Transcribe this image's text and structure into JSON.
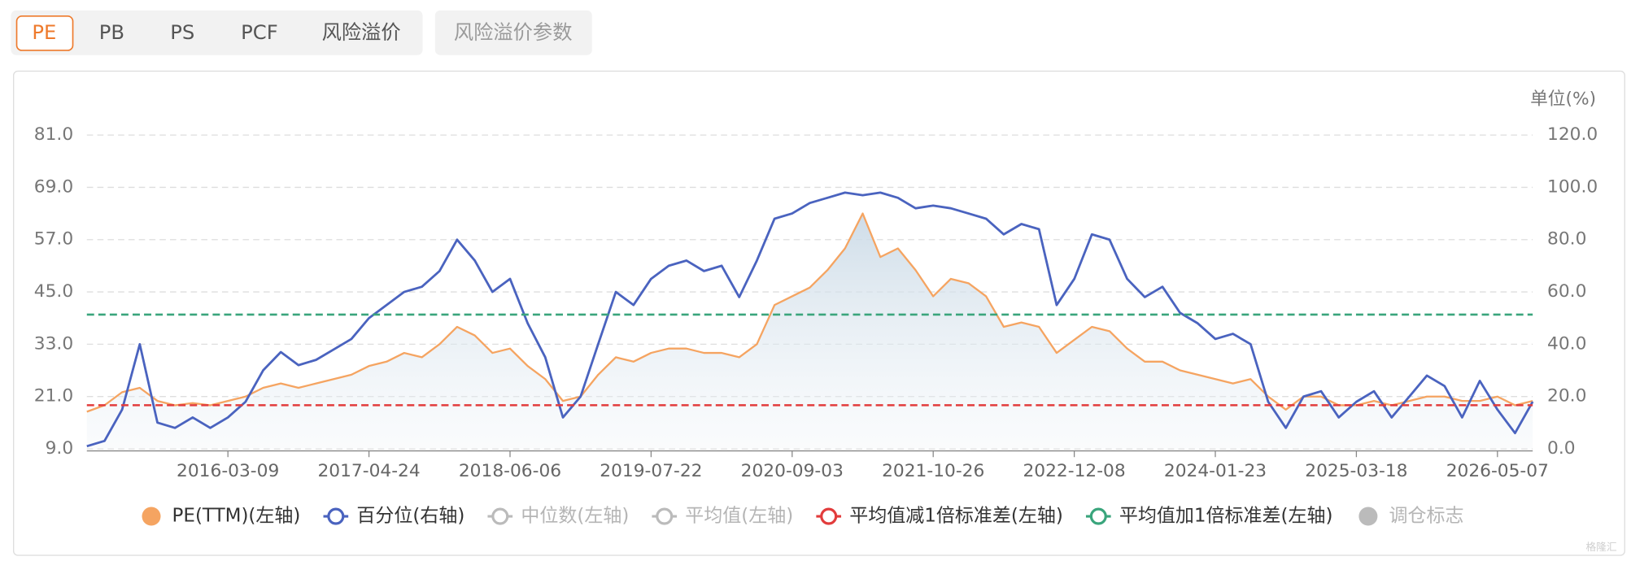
{
  "tabs": {
    "items": [
      "PE",
      "PB",
      "PS",
      "PCF",
      "风险溢价"
    ],
    "active": 0,
    "extra": "风险溢价参数"
  },
  "chart_data": {
    "type": "line",
    "y2_unit_label": "单位(%)",
    "categories": [
      null,
      null,
      null,
      null,
      null,
      null,
      null,
      null,
      "2016-03-09",
      null,
      null,
      null,
      null,
      null,
      null,
      null,
      "2017-04-24",
      null,
      null,
      null,
      null,
      null,
      null,
      null,
      "2018-06-06",
      null,
      null,
      null,
      null,
      null,
      null,
      null,
      "2019-07-22",
      null,
      null,
      null,
      null,
      null,
      null,
      null,
      "2020-09-03",
      null,
      null,
      null,
      null,
      null,
      null,
      null,
      "2021-10-26",
      null,
      null,
      null,
      null,
      null,
      null,
      null,
      "2022-12-08",
      null,
      null,
      null,
      null,
      null,
      null,
      null,
      "2024-01-23",
      null,
      null,
      null,
      null,
      null,
      null,
      null,
      "2025-03-18",
      null,
      null,
      null,
      null,
      null,
      null,
      null,
      "2026-05-07",
      null,
      null
    ],
    "ylim": [
      9,
      81
    ],
    "yticks": [
      {
        "value": 9,
        "label": "9.0"
      },
      {
        "value": 21,
        "label": "21.0"
      },
      {
        "value": 33,
        "label": "33.0"
      },
      {
        "value": 45,
        "label": "45.0"
      },
      {
        "value": 57,
        "label": "57.0"
      },
      {
        "value": 69,
        "label": "69.0"
      },
      {
        "value": 81,
        "label": "81.0"
      }
    ],
    "y2lim": [
      0,
      120
    ],
    "y2ticks": [
      {
        "value": 0,
        "label": "0.0"
      },
      {
        "value": 20,
        "label": "20.0"
      },
      {
        "value": 40,
        "label": "40.0"
      },
      {
        "value": 60,
        "label": "60.0"
      },
      {
        "value": 80,
        "label": "80.0"
      },
      {
        "value": 100,
        "label": "100.0"
      },
      {
        "value": 120,
        "label": "120.0"
      }
    ],
    "grid": true,
    "series": [
      {
        "name": "PE(TTM)(左轴)",
        "color": "#f5a461",
        "area": true,
        "marker": "dot",
        "values": [
          17.5,
          19,
          22,
          23,
          20,
          19,
          19.5,
          19,
          20,
          21,
          23,
          24,
          23,
          24,
          25,
          26,
          28,
          29,
          31,
          30,
          33,
          37,
          35,
          31,
          32,
          28,
          25,
          20,
          21,
          26,
          30,
          29,
          31,
          32,
          32,
          31,
          31,
          30,
          33,
          42,
          44,
          46,
          50,
          55,
          63,
          53,
          55,
          50,
          44,
          48,
          47,
          44,
          37,
          38,
          37,
          31,
          34,
          37,
          36,
          32,
          29,
          29,
          27,
          26,
          25,
          24,
          25,
          21,
          18,
          21,
          21,
          19,
          19,
          20,
          19,
          20,
          21,
          21,
          20,
          20,
          21,
          19,
          20
        ]
      },
      {
        "name": "百分位(右轴)",
        "color": "#4a63bf",
        "axis": "y2",
        "marker": "ring",
        "values": [
          1,
          3,
          15,
          40,
          10,
          8,
          12,
          8,
          12,
          18,
          30,
          37,
          32,
          34,
          38,
          42,
          50,
          55,
          60,
          62,
          68,
          80,
          72,
          60,
          65,
          48,
          35,
          12,
          20,
          40,
          60,
          55,
          65,
          70,
          72,
          68,
          70,
          58,
          72,
          88,
          90,
          94,
          96,
          98,
          97,
          98,
          96,
          92,
          93,
          92,
          90,
          88,
          82,
          86,
          84,
          55,
          65,
          82,
          80,
          65,
          58,
          62,
          52,
          48,
          42,
          44,
          40,
          18,
          8,
          20,
          22,
          12,
          18,
          22,
          12,
          20,
          28,
          24,
          12,
          26,
          15,
          6,
          18
        ]
      },
      {
        "name": "中位数(左轴)",
        "color": "#bbbbbb",
        "marker": "ring",
        "hidden": true
      },
      {
        "name": "平均值(左轴)",
        "color": "#bbbbbb",
        "marker": "ring",
        "hidden": true
      },
      {
        "name": "平均值减1倍标准差(左轴)",
        "color": "#e23c3c",
        "marker": "ring",
        "value": 19.0
      },
      {
        "name": "平均值加1倍标准差(左轴)",
        "color": "#3aa57c",
        "marker": "ring",
        "value": 39.8
      },
      {
        "name": "调仓标志",
        "color": "#bbbbbb",
        "marker": "dot",
        "hidden": true
      }
    ]
  },
  "watermark": "格隆汇"
}
